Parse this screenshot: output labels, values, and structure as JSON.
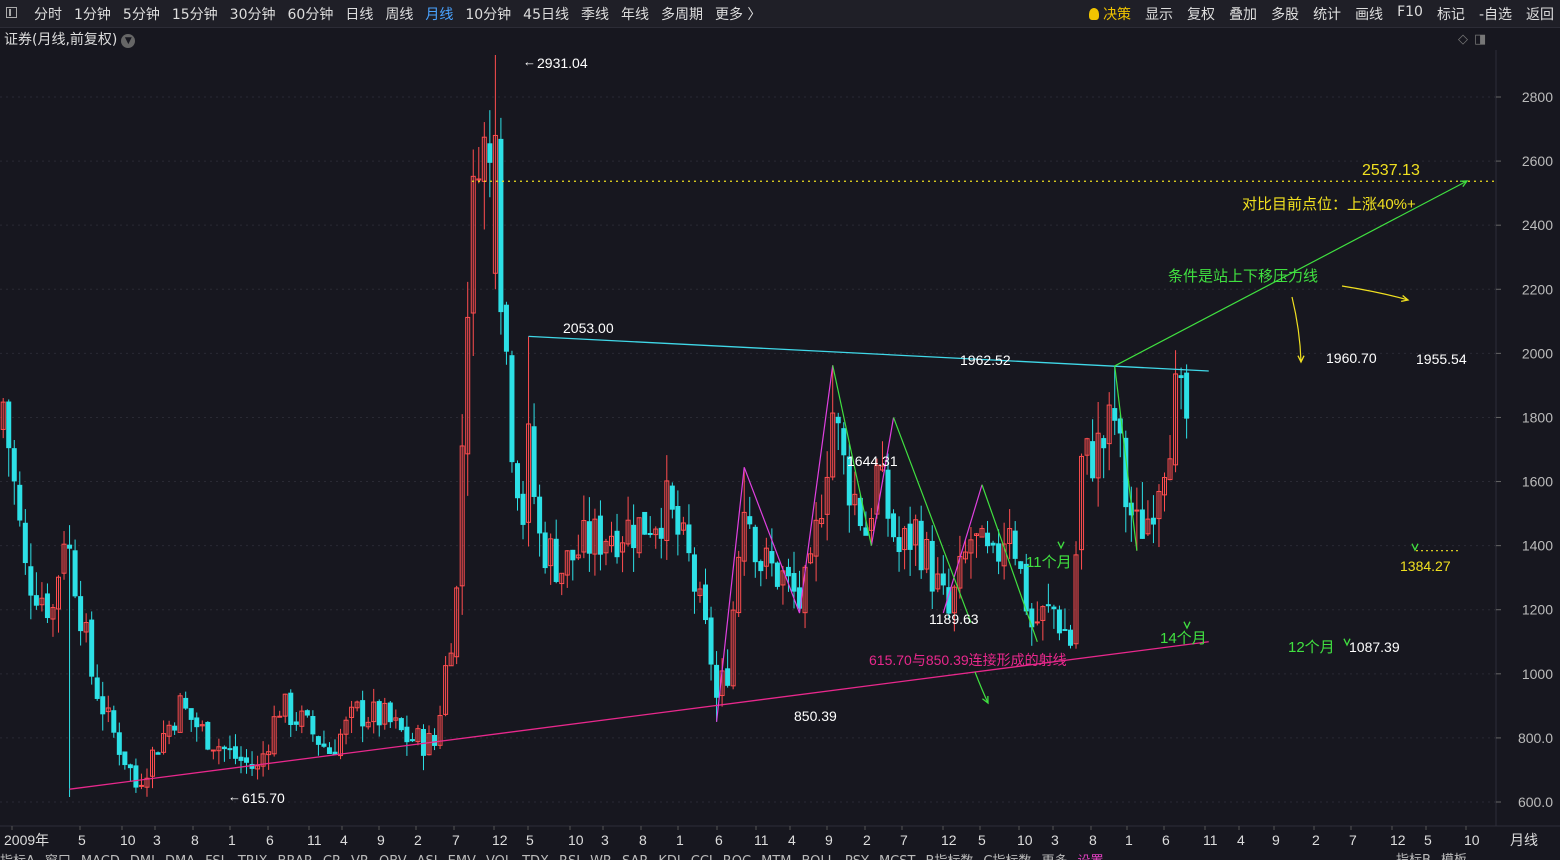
{
  "toolbar": {
    "periods": [
      "分时",
      "1分钟",
      "5分钟",
      "15分钟",
      "30分钟",
      "60分钟",
      "日线",
      "周线",
      "月线",
      "10分钟",
      "45日线",
      "季线",
      "年线",
      "多周期",
      "更多 〉"
    ],
    "active_period": "月线",
    "right_items": [
      "决策",
      "显示",
      "复权",
      "叠加",
      "多股",
      "统计",
      "画线",
      "F10",
      "标记",
      "-自选",
      "返回"
    ]
  },
  "title": "证券(月线,前复权)",
  "period_label": "月线",
  "bottom_tabs": [
    "指标A",
    "窗口",
    "MACD",
    "DMI",
    "DMA",
    "FSL",
    "TRIX",
    "BRAR",
    "CR",
    "VR",
    "OBV",
    "ASI",
    "EMV",
    "VOL",
    "TDX",
    "RSI",
    "WR",
    "SAR",
    "KDJ",
    "CCI",
    "ROC",
    "MTM",
    "BOLL",
    "PSY",
    "MCST",
    "B指标数",
    "C指标数",
    "更多",
    "设置"
  ],
  "bottom_right": [
    "指标B",
    "模板"
  ],
  "colors": {
    "up": "#ff4d4f",
    "down": "#2de0e6",
    "resistance": "#40d8e8",
    "support": "#e8288c",
    "green": "#40e040",
    "magenta": "#e040e0",
    "yellow": "#f0e020",
    "accent": "#4aa3ff"
  },
  "chart_data": {
    "type": "candlestick",
    "y_axis": {
      "min": 550,
      "max": 2950,
      "ticks": [
        "2800",
        "2600",
        "2400",
        "2200",
        "2000",
        "1800",
        "1600",
        "1400",
        "1200",
        "1000",
        "800.0",
        "600.0"
      ]
    },
    "x_ticks": [
      "2009年",
      "5",
      "10",
      "3",
      "8",
      "1",
      "6",
      "11",
      "4",
      "9",
      "2",
      "7",
      "12",
      "5",
      "10",
      "3",
      "8",
      "1",
      "6",
      "11",
      "4",
      "9",
      "2",
      "7",
      "12",
      "5",
      "10",
      "3",
      "8",
      "1",
      "6",
      "11",
      "4",
      "9",
      "2",
      "7",
      "12",
      "5",
      "10"
    ],
    "key_points": [
      {
        "date": "2009-01",
        "label": "615.70",
        "value": 615.7
      },
      {
        "date": "2015-06",
        "label": "2931.04",
        "value": 2931.04
      },
      {
        "date": "2015-12",
        "label": "2053.00",
        "value": 2053.0
      },
      {
        "date": "2018-10",
        "label": "850.39",
        "value": 850.39
      },
      {
        "date": "2019-03",
        "label": "1644.31",
        "value": 1644.31
      },
      {
        "date": "2020-01",
        "label": "1189.63",
        "value": 1189.63
      },
      {
        "date": "2020-07",
        "label": "1962.52",
        "value": 1962.52
      },
      {
        "date": "2023-07",
        "label": "1087.39",
        "value": 1087.39
      },
      {
        "date": "2024-10",
        "label": "1960.70",
        "value": 1960.7
      },
      {
        "date": "2025-02",
        "label": "1384.27",
        "value": 1384.27
      },
      {
        "date": "2025-10",
        "label": "1955.54",
        "value": 1955.54
      }
    ],
    "lines": [
      {
        "name": "resistance",
        "from": {
          "date": "2015-12",
          "value": 2053.0
        },
        "to": {
          "date": "2026-03",
          "value": 1945
        }
      },
      {
        "name": "support",
        "from": {
          "date": "2009-01",
          "value": 640
        },
        "to": {
          "date": "2026-03",
          "value": 1100
        }
      }
    ],
    "target": {
      "label": "2537.13",
      "value": 2537.13
    },
    "annotations": [
      "对比目前点位：上涨40%+",
      "条件是站上下移压力线",
      "11个月",
      "14个月",
      "12个月",
      "615.70与850.39连接形成的射线"
    ]
  }
}
